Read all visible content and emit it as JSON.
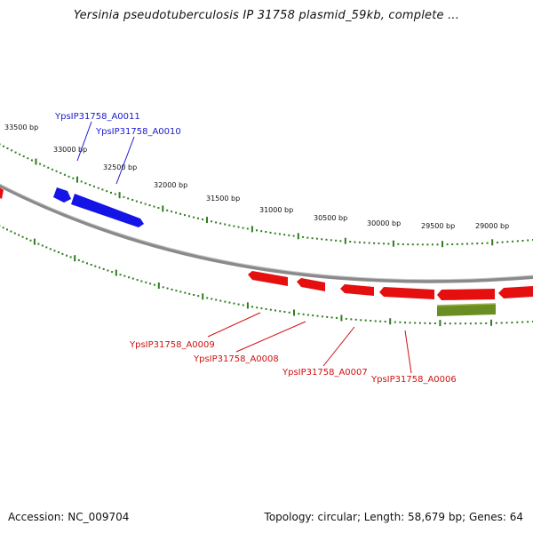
{
  "title": "Yersinia pseudotuberculosis IP 31758 plasmid_59kb, complete ...",
  "footer": {
    "accession": "Accession: NC_009704",
    "topology": "Topology: circular; Length: 58,679 bp; Genes: 64"
  },
  "colors": {
    "backbone": "#8a8a8a",
    "tick": "#2e7d1e",
    "forward_gene": "#1414e6",
    "reverse_gene": "#e60f0f",
    "other_feature": "#6b8e23",
    "forward_label": "#1a1acc",
    "reverse_label": "#d01010"
  },
  "scale_ticks": [
    "33500 bp",
    "33000 bp",
    "32500 bp",
    "32000 bp",
    "31500 bp",
    "31000 bp",
    "30500 bp",
    "30000 bp",
    "29500 bp",
    "29000 bp"
  ],
  "forward_genes": [
    "YpsIP31758_A0011",
    "YpsIP31758_A0010"
  ],
  "reverse_genes": [
    "YpsIP31758_A0009",
    "YpsIP31758_A0008",
    "YpsIP31758_A0007",
    "YpsIP31758_A0006"
  ]
}
